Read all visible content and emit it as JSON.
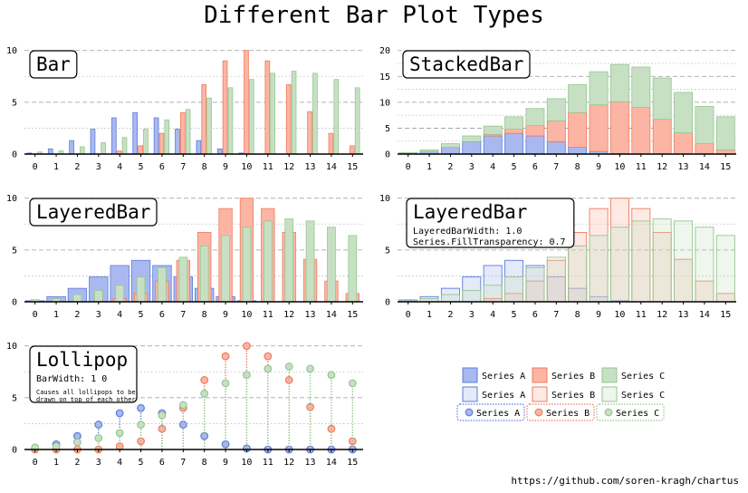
{
  "title": "Different Bar Plot Types",
  "footer": "https://github.com/soren-kragh/chartus",
  "colors": {
    "series_a_fill": "#a9b9ef",
    "series_a_line": "#5b7bdc",
    "series_b_fill": "#fcb5a4",
    "series_b_line": "#ef7a5e",
    "series_c_fill": "#c7e0c4",
    "series_c_line": "#94c68f"
  },
  "chart_data": [
    {
      "type": "bar",
      "variant": "Bar",
      "label": "Bar",
      "categories": [
        "0",
        "1",
        "2",
        "3",
        "4",
        "5",
        "6",
        "7",
        "8",
        "9",
        "10",
        "11",
        "12",
        "13",
        "14",
        "15"
      ],
      "ylim": [
        0,
        10.5
      ],
      "yticks": [
        0,
        5,
        10
      ],
      "series": [
        {
          "name": "Series A",
          "values": [
            0.1,
            0.5,
            1.3,
            2.4,
            3.5,
            4.0,
            3.5,
            2.4,
            1.3,
            0.5,
            0.1,
            0,
            0,
            0,
            0,
            0
          ]
        },
        {
          "name": "Series B",
          "values": [
            0,
            0,
            0,
            0,
            0.3,
            0.8,
            2.0,
            4.0,
            6.7,
            9.0,
            10.0,
            9.0,
            6.7,
            4.1,
            2.0,
            0.8
          ]
        },
        {
          "name": "Series C",
          "values": [
            0.2,
            0.3,
            0.7,
            1.1,
            1.6,
            2.4,
            3.3,
            4.3,
            5.4,
            6.4,
            7.2,
            7.8,
            8.0,
            7.8,
            7.2,
            6.4
          ]
        }
      ]
    },
    {
      "type": "bar",
      "variant": "StackedBar",
      "label": "StackedBar",
      "categories": [
        "0",
        "1",
        "2",
        "3",
        "4",
        "5",
        "6",
        "7",
        "8",
        "9",
        "10",
        "11",
        "12",
        "13",
        "14",
        "15"
      ],
      "ylim": [
        0,
        21
      ],
      "yticks": [
        0,
        5,
        10,
        15,
        20
      ],
      "series": [
        {
          "name": "Series A",
          "values": [
            0.1,
            0.5,
            1.3,
            2.4,
            3.5,
            4.0,
            3.5,
            2.4,
            1.3,
            0.5,
            0.1,
            0,
            0,
            0,
            0,
            0
          ]
        },
        {
          "name": "Series B",
          "values": [
            0,
            0,
            0,
            0,
            0.3,
            0.8,
            2.0,
            4.0,
            6.7,
            9.0,
            10.0,
            9.0,
            6.7,
            4.1,
            2.0,
            0.8
          ]
        },
        {
          "name": "Series C",
          "values": [
            0.2,
            0.3,
            0.7,
            1.1,
            1.6,
            2.4,
            3.3,
            4.3,
            5.4,
            6.4,
            7.2,
            7.8,
            8.0,
            7.8,
            7.2,
            6.4
          ]
        }
      ]
    },
    {
      "type": "bar",
      "variant": "LayeredBar",
      "label": "LayeredBar",
      "categories": [
        "0",
        "1",
        "2",
        "3",
        "4",
        "5",
        "6",
        "7",
        "8",
        "9",
        "10",
        "11",
        "12",
        "13",
        "14",
        "15"
      ],
      "ylim": [
        0,
        10.5
      ],
      "yticks": [
        0,
        5,
        10
      ],
      "series": [
        {
          "name": "Series A",
          "values": [
            0.1,
            0.5,
            1.3,
            2.4,
            3.5,
            4.0,
            3.5,
            2.4,
            1.3,
            0.5,
            0.1,
            0,
            0,
            0,
            0,
            0
          ]
        },
        {
          "name": "Series B",
          "values": [
            0,
            0,
            0,
            0,
            0.3,
            0.8,
            2.0,
            4.0,
            6.7,
            9.0,
            10.0,
            9.0,
            6.7,
            4.1,
            2.0,
            0.8
          ]
        },
        {
          "name": "Series C",
          "values": [
            0.2,
            0.3,
            0.7,
            1.1,
            1.6,
            2.4,
            3.3,
            4.3,
            5.4,
            6.4,
            7.2,
            7.8,
            8.0,
            7.8,
            7.2,
            6.4
          ]
        }
      ]
    },
    {
      "type": "bar",
      "variant": "LayeredBarFull",
      "label": "LayeredBar",
      "sublabel": [
        "LayeredBarWidth: 1.0",
        "Series.FillTransparency: 0.7"
      ],
      "categories": [
        "0",
        "1",
        "2",
        "3",
        "4",
        "5",
        "6",
        "7",
        "8",
        "9",
        "10",
        "11",
        "12",
        "13",
        "14",
        "15"
      ],
      "ylim": [
        0,
        10.5
      ],
      "yticks": [
        0,
        5,
        10
      ],
      "series": [
        {
          "name": "Series A",
          "values": [
            0.1,
            0.5,
            1.3,
            2.4,
            3.5,
            4.0,
            3.5,
            2.4,
            1.3,
            0.5,
            0.1,
            0,
            0,
            0,
            0,
            0
          ]
        },
        {
          "name": "Series B",
          "values": [
            0,
            0,
            0,
            0,
            0.3,
            0.8,
            2.0,
            4.0,
            6.7,
            9.0,
            10.0,
            9.0,
            6.7,
            4.1,
            2.0,
            0.8
          ]
        },
        {
          "name": "Series C",
          "values": [
            0.2,
            0.3,
            0.7,
            1.1,
            1.6,
            2.4,
            3.3,
            4.3,
            5.4,
            6.4,
            7.2,
            7.8,
            8.0,
            7.8,
            7.2,
            6.4
          ]
        }
      ]
    },
    {
      "type": "scatter",
      "variant": "Lollipop",
      "label": "Lollipop",
      "sublabel": [
        "BarWidth: 1 0"
      ],
      "note": [
        "Causes all lollipops to be",
        "drawn on top of each other"
      ],
      "categories": [
        "0",
        "1",
        "2",
        "3",
        "4",
        "5",
        "6",
        "7",
        "8",
        "9",
        "10",
        "11",
        "12",
        "13",
        "14",
        "15"
      ],
      "ylim": [
        0,
        10.5
      ],
      "yticks": [
        0,
        5,
        10
      ],
      "series": [
        {
          "name": "Series A",
          "values": [
            0.1,
            0.5,
            1.3,
            2.4,
            3.5,
            4.0,
            3.5,
            2.4,
            1.3,
            0.5,
            0.1,
            0,
            0,
            0,
            0,
            0
          ]
        },
        {
          "name": "Series B",
          "values": [
            0,
            0,
            0,
            0,
            0.3,
            0.8,
            2.0,
            4.0,
            6.7,
            9.0,
            10.0,
            9.0,
            6.7,
            4.1,
            2.0,
            0.8
          ]
        },
        {
          "name": "Series C",
          "values": [
            0.2,
            0.3,
            0.7,
            1.1,
            1.6,
            2.4,
            3.3,
            4.3,
            5.4,
            6.4,
            7.2,
            7.8,
            8.0,
            7.8,
            7.2,
            6.4
          ]
        }
      ]
    }
  ],
  "legend": {
    "rows": [
      {
        "style": "solid",
        "items": [
          "Series A",
          "Series B",
          "Series C"
        ]
      },
      {
        "style": "light",
        "items": [
          "Series A",
          "Series B",
          "Series C"
        ]
      },
      {
        "style": "lollipop",
        "items": [
          "Series A",
          "Series B",
          "Series C"
        ]
      }
    ]
  }
}
